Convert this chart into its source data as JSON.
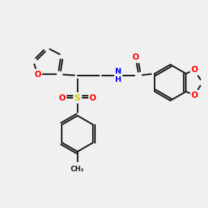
{
  "bg_color": "#f0f0f0",
  "bond_color": "#1a1a1a",
  "bond_width": 1.6,
  "atom_colors": {
    "O": "#ff0000",
    "N": "#0000ff",
    "S": "#cccc00",
    "C": "#1a1a1a",
    "H": "#1a1a1a"
  },
  "font_size": 8.5,
  "fig_size": [
    3.0,
    3.0
  ],
  "dpi": 100
}
